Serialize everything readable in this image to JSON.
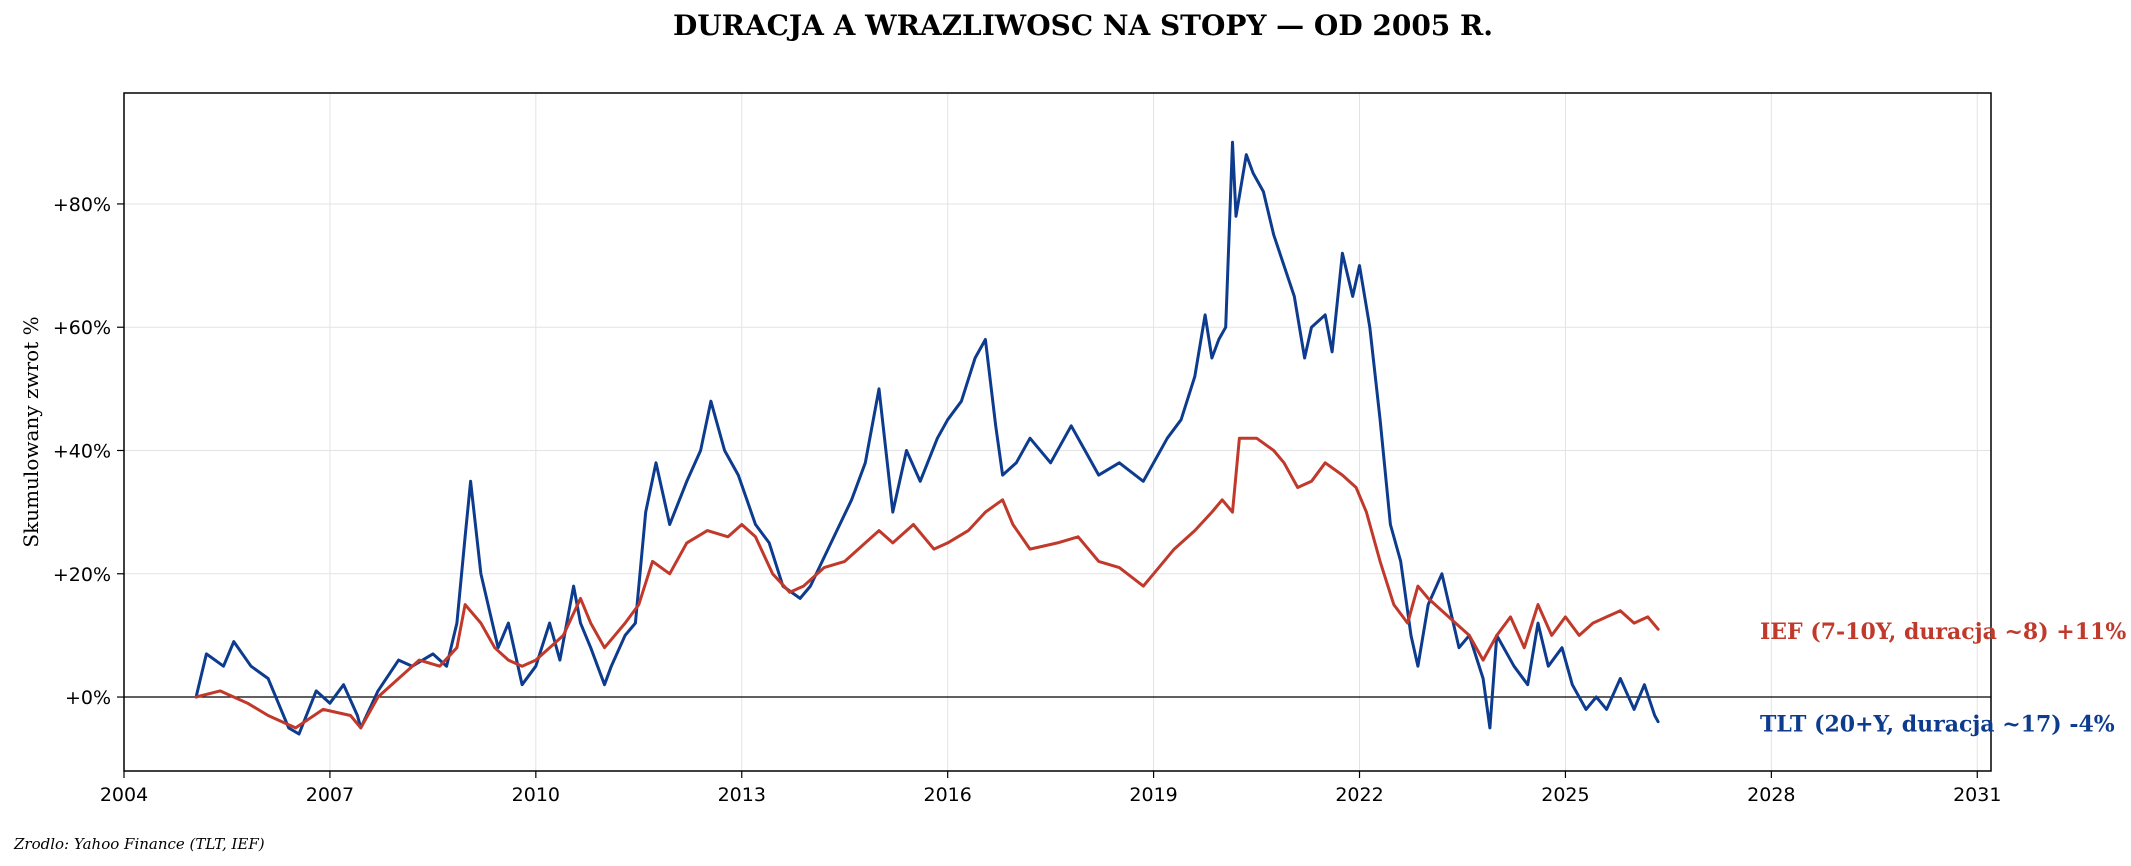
{
  "colors": {
    "tlt": "#0d3b8e",
    "ief": "#c0392b"
  },
  "chart_data": {
    "type": "line",
    "title": "DURACJA A WRAZLIWOSC NA STOPY — OD 2005 R.",
    "ylabel": "Skumulowany zwrot %",
    "source": "Zrodlo: Yahoo Finance (TLT, IEF)",
    "xlim": [
      2004.0,
      2031.2
    ],
    "ylim": [
      -12,
      98
    ],
    "grid": true,
    "x_ticks": [
      2004,
      2007,
      2010,
      2013,
      2016,
      2019,
      2022,
      2025,
      2028,
      2031
    ],
    "x_tick_labels": [
      "2004",
      "2007",
      "2010",
      "2013",
      "2016",
      "2019",
      "2022",
      "2025",
      "2028",
      "2031"
    ],
    "y_ticks": [
      0,
      20,
      40,
      60,
      80
    ],
    "y_tick_labels": [
      "+0%",
      "+20%",
      "+40%",
      "+60%",
      "+80%"
    ],
    "reference_line": 0,
    "series": [
      {
        "name": "TLT",
        "color_key": "tlt",
        "end_label": "TLT (20+Y, duracja ~17)  -4%",
        "x": [
          2005.05,
          2005.2,
          2005.45,
          2005.6,
          2005.85,
          2006.1,
          2006.4,
          2006.55,
          2006.8,
          2007.0,
          2007.2,
          2007.4,
          2007.45,
          2007.7,
          2008.0,
          2008.2,
          2008.5,
          2008.7,
          2008.85,
          2008.97,
          2009.05,
          2009.2,
          2009.45,
          2009.6,
          2009.8,
          2010.0,
          2010.2,
          2010.35,
          2010.55,
          2010.65,
          2010.8,
          2011.0,
          2011.1,
          2011.3,
          2011.45,
          2011.6,
          2011.75,
          2011.95,
          2012.2,
          2012.4,
          2012.55,
          2012.75,
          2012.95,
          2013.2,
          2013.4,
          2013.6,
          2013.85,
          2014.0,
          2014.3,
          2014.6,
          2014.8,
          2015.0,
          2015.2,
          2015.4,
          2015.6,
          2015.85,
          2016.0,
          2016.2,
          2016.4,
          2016.55,
          2016.7,
          2016.8,
          2017.0,
          2017.2,
          2017.5,
          2017.8,
          2018.0,
          2018.2,
          2018.5,
          2018.85,
          2019.0,
          2019.2,
          2019.4,
          2019.6,
          2019.75,
          2019.85,
          2019.95,
          2020.05,
          2020.15,
          2020.2,
          2020.35,
          2020.45,
          2020.6,
          2020.75,
          2020.9,
          2021.05,
          2021.2,
          2021.3,
          2021.5,
          2021.6,
          2021.75,
          2021.9,
          2022.0,
          2022.15,
          2022.3,
          2022.45,
          2022.6,
          2022.75,
          2022.85,
          2023.0,
          2023.2,
          2023.45,
          2023.6,
          2023.8,
          2023.9,
          2024.0,
          2024.25,
          2024.45,
          2024.6,
          2024.75,
          2024.95,
          2025.1,
          2025.3,
          2025.45,
          2025.6,
          2025.8,
          2026.0,
          2026.15,
          2026.3,
          2026.35
        ],
        "y": [
          0,
          7,
          5,
          9,
          5,
          3,
          -5,
          -6,
          1,
          -1,
          2,
          -3,
          -5,
          1,
          6,
          5,
          7,
          5,
          12,
          26,
          35,
          20,
          8,
          12,
          2,
          5,
          12,
          6,
          18,
          12,
          8,
          2,
          5,
          10,
          12,
          30,
          38,
          28,
          35,
          40,
          48,
          40,
          36,
          28,
          25,
          18,
          16,
          18,
          25,
          32,
          38,
          50,
          30,
          40,
          35,
          42,
          45,
          48,
          55,
          58,
          44,
          36,
          38,
          42,
          38,
          44,
          40,
          36,
          38,
          35,
          38,
          42,
          45,
          52,
          62,
          55,
          58,
          60,
          90,
          78,
          88,
          85,
          82,
          75,
          70,
          65,
          55,
          60,
          62,
          56,
          72,
          65,
          70,
          60,
          45,
          28,
          22,
          10,
          5,
          15,
          20,
          8,
          10,
          3,
          -5,
          10,
          5,
          2,
          12,
          5,
          8,
          2,
          -2,
          0,
          -2,
          3,
          -2,
          2,
          -3,
          -4
        ]
      },
      {
        "name": "IEF",
        "color_key": "ief",
        "end_label": "IEF (7-10Y, duracja ~8)  +11%",
        "x": [
          2005.05,
          2005.4,
          2005.8,
          2006.1,
          2006.5,
          2006.9,
          2007.3,
          2007.45,
          2007.7,
          2008.0,
          2008.3,
          2008.6,
          2008.85,
          2008.97,
          2009.2,
          2009.4,
          2009.6,
          2009.8,
          2010.0,
          2010.2,
          2010.4,
          2010.65,
          2010.8,
          2011.0,
          2011.3,
          2011.5,
          2011.7,
          2011.95,
          2012.2,
          2012.5,
          2012.8,
          2013.0,
          2013.2,
          2013.45,
          2013.7,
          2013.9,
          2014.2,
          2014.5,
          2014.8,
          2015.0,
          2015.2,
          2015.5,
          2015.8,
          2016.0,
          2016.3,
          2016.55,
          2016.8,
          2016.95,
          2017.2,
          2017.6,
          2017.9,
          2018.2,
          2018.5,
          2018.85,
          2019.0,
          2019.3,
          2019.6,
          2019.85,
          2020.0,
          2020.15,
          2020.25,
          2020.5,
          2020.75,
          2020.9,
          2021.1,
          2021.3,
          2021.5,
          2021.75,
          2021.95,
          2022.1,
          2022.3,
          2022.5,
          2022.7,
          2022.85,
          2023.0,
          2023.2,
          2023.4,
          2023.6,
          2023.8,
          2024.0,
          2024.2,
          2024.4,
          2024.6,
          2024.8,
          2025.0,
          2025.2,
          2025.4,
          2025.6,
          2025.8,
          2026.0,
          2026.2,
          2026.35
        ],
        "y": [
          0,
          1,
          -1,
          -3,
          -5,
          -2,
          -3,
          -5,
          0,
          3,
          6,
          5,
          8,
          15,
          12,
          8,
          6,
          5,
          6,
          8,
          10,
          16,
          12,
          8,
          12,
          15,
          22,
          20,
          25,
          27,
          26,
          28,
          26,
          20,
          17,
          18,
          21,
          22,
          25,
          27,
          25,
          28,
          24,
          25,
          27,
          30,
          32,
          28,
          24,
          25,
          26,
          22,
          21,
          18,
          20,
          24,
          27,
          30,
          32,
          30,
          42,
          42,
          40,
          38,
          34,
          35,
          38,
          36,
          34,
          30,
          22,
          15,
          12,
          18,
          16,
          14,
          12,
          10,
          6,
          10,
          13,
          8,
          15,
          10,
          13,
          10,
          12,
          13,
          14,
          12,
          13,
          11
        ]
      }
    ]
  }
}
